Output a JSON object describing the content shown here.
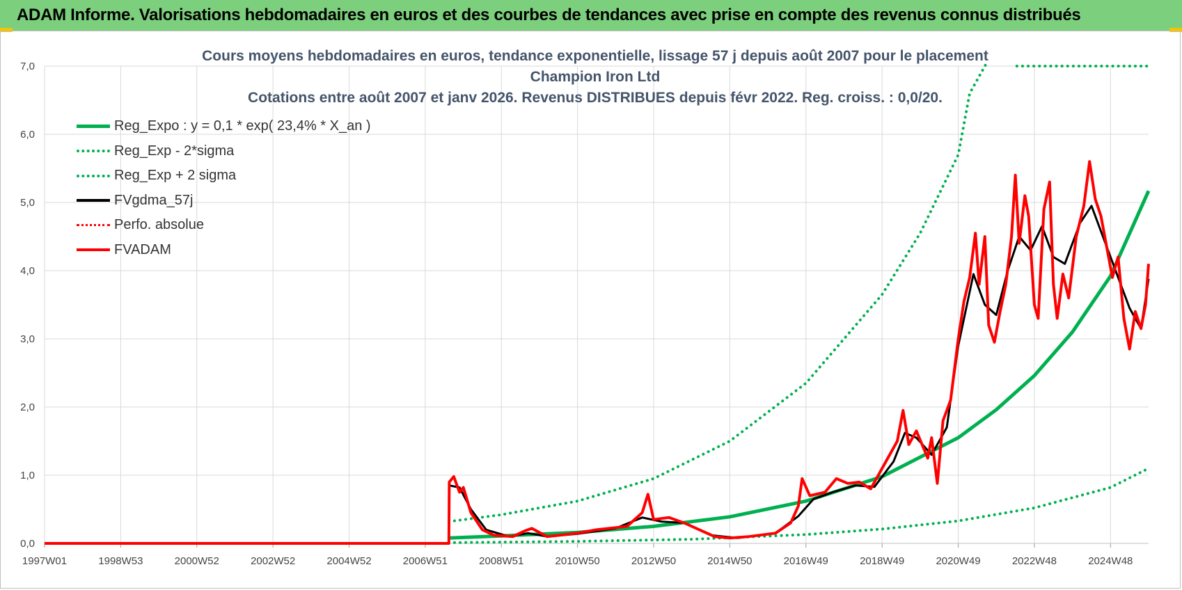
{
  "header": {
    "title": "ADAM Informe. Valorisations hebdomadaires en euros et des courbes de tendances avec prise en compte des revenus connus distribués"
  },
  "chart_data": {
    "type": "line",
    "title_line1": "Cours moyens  hebdomadaires en euros, tendance exponentielle, lissage 57 j depuis août 2007 pour le placement Champion Iron Ltd",
    "title_line2": "Cotations entre août 2007 et janv 2026.  Revenus DISTRIBUES depuis févr 2022.  Reg. croiss. : 0,0/20.",
    "ylim": [
      0,
      7
    ],
    "y_ticks": [
      "0,0",
      "1,0",
      "2,0",
      "3,0",
      "4,0",
      "5,0",
      "6,0",
      "7,0"
    ],
    "x_range": [
      1997.0,
      2026.0
    ],
    "x_ticks": [
      {
        "label": "1997W01",
        "x": 1997.0
      },
      {
        "label": "1998W53",
        "x": 1999.0
      },
      {
        "label": "2000W52",
        "x": 2001.0
      },
      {
        "label": "2002W52",
        "x": 2003.0
      },
      {
        "label": "2004W52",
        "x": 2005.0
      },
      {
        "label": "2006W51",
        "x": 2007.0
      },
      {
        "label": "2008W51",
        "x": 2009.0
      },
      {
        "label": "2010W50",
        "x": 2011.0
      },
      {
        "label": "2012W50",
        "x": 2013.0
      },
      {
        "label": "2014W50",
        "x": 2015.0
      },
      {
        "label": "2016W49",
        "x": 2017.0
      },
      {
        "label": "2018W49",
        "x": 2019.0
      },
      {
        "label": "2020W49",
        "x": 2021.0
      },
      {
        "label": "2022W48",
        "x": 2023.0
      },
      {
        "label": "2024W48",
        "x": 2025.0
      }
    ],
    "grid": true,
    "legend_position": "top-left",
    "series": [
      {
        "name": "Reg_Expo : y = 0,1 * exp( 23,4% *  X_an )",
        "color": "#00b050",
        "style": "solid",
        "width": 5,
        "points": [
          [
            2007.62,
            0.08
          ],
          [
            2009,
            0.11
          ],
          [
            2011,
            0.16
          ],
          [
            2013,
            0.25
          ],
          [
            2015,
            0.39
          ],
          [
            2017,
            0.62
          ],
          [
            2019,
            0.98
          ],
          [
            2021,
            1.55
          ],
          [
            2022,
            1.96
          ],
          [
            2023,
            2.46
          ],
          [
            2024,
            3.1
          ],
          [
            2025,
            3.92
          ],
          [
            2026,
            5.17
          ]
        ]
      },
      {
        "name": "Reg_Exp - 2*sigma",
        "color": "#00b050",
        "style": "dotted",
        "width": 4,
        "points": [
          [
            2007.62,
            0.01
          ],
          [
            2011,
            0.03
          ],
          [
            2014,
            0.06
          ],
          [
            2017,
            0.13
          ],
          [
            2019,
            0.21
          ],
          [
            2021,
            0.33
          ],
          [
            2023,
            0.52
          ],
          [
            2025,
            0.82
          ],
          [
            2026,
            1.1
          ]
        ]
      },
      {
        "name": "Reg_Exp + 2 sigma",
        "color": "#00b050",
        "style": "dotted",
        "width": 4,
        "points": [
          [
            2007.62,
            0.32
          ],
          [
            2009,
            0.42
          ],
          [
            2011,
            0.62
          ],
          [
            2013,
            0.95
          ],
          [
            2015,
            1.5
          ],
          [
            2017,
            2.35
          ],
          [
            2019,
            3.65
          ],
          [
            2020,
            4.55
          ],
          [
            2021,
            5.7
          ],
          [
            2021.3,
            6.6
          ],
          [
            2022.0,
            7.3
          ]
        ]
      },
      {
        "name": "Reg_Exp + 2 sigma (cap)",
        "color": "#00b050",
        "style": "dotted",
        "width": 4,
        "points": [
          [
            2022.54,
            7.0
          ],
          [
            2026.0,
            7.0
          ]
        ]
      },
      {
        "name": "FVgdma_57j",
        "color": "#000000",
        "style": "solid",
        "width": 3,
        "points": [
          [
            1997.0,
            0.0
          ],
          [
            2007.62,
            0.0
          ],
          [
            2007.63,
            0.85
          ],
          [
            2007.9,
            0.82
          ],
          [
            2008.2,
            0.5
          ],
          [
            2008.6,
            0.2
          ],
          [
            2009.2,
            0.1
          ],
          [
            2009.7,
            0.15
          ],
          [
            2010.2,
            0.1
          ],
          [
            2011,
            0.14
          ],
          [
            2012,
            0.22
          ],
          [
            2012.7,
            0.38
          ],
          [
            2013.2,
            0.32
          ],
          [
            2013.8,
            0.3
          ],
          [
            2014.5,
            0.12
          ],
          [
            2015.2,
            0.08
          ],
          [
            2016.2,
            0.15
          ],
          [
            2016.8,
            0.4
          ],
          [
            2017.2,
            0.65
          ],
          [
            2017.7,
            0.75
          ],
          [
            2018.3,
            0.85
          ],
          [
            2018.8,
            0.83
          ],
          [
            2019.3,
            1.2
          ],
          [
            2019.6,
            1.62
          ],
          [
            2019.9,
            1.55
          ],
          [
            2020.3,
            1.3
          ],
          [
            2020.7,
            1.7
          ],
          [
            2021.0,
            2.9
          ],
          [
            2021.4,
            3.95
          ],
          [
            2021.7,
            3.5
          ],
          [
            2022.0,
            3.35
          ],
          [
            2022.3,
            4.0
          ],
          [
            2022.6,
            4.5
          ],
          [
            2022.9,
            4.3
          ],
          [
            2023.2,
            4.65
          ],
          [
            2023.5,
            4.2
          ],
          [
            2023.8,
            4.1
          ],
          [
            2024.2,
            4.7
          ],
          [
            2024.5,
            4.95
          ],
          [
            2024.8,
            4.5
          ],
          [
            2025.1,
            4.05
          ],
          [
            2025.5,
            3.45
          ],
          [
            2025.8,
            3.15
          ],
          [
            2026.0,
            3.88
          ]
        ]
      },
      {
        "name": "Perfo. absolue",
        "color": "#ff0000",
        "style": "dotted",
        "width": 2,
        "points": [
          [
            1997.0,
            0.0
          ],
          [
            2007.62,
            0.0
          ]
        ]
      },
      {
        "name": "FVADAM",
        "color": "#ff0000",
        "style": "solid",
        "width": 4,
        "points": [
          [
            1997.0,
            0.0
          ],
          [
            2007.62,
            0.0
          ],
          [
            2007.63,
            0.9
          ],
          [
            2007.75,
            0.98
          ],
          [
            2007.9,
            0.75
          ],
          [
            2008.0,
            0.82
          ],
          [
            2008.2,
            0.45
          ],
          [
            2008.5,
            0.2
          ],
          [
            2008.8,
            0.12
          ],
          [
            2009.3,
            0.1
          ],
          [
            2009.6,
            0.18
          ],
          [
            2009.8,
            0.22
          ],
          [
            2010.2,
            0.1
          ],
          [
            2011,
            0.15
          ],
          [
            2011.5,
            0.2
          ],
          [
            2012.3,
            0.25
          ],
          [
            2012.7,
            0.45
          ],
          [
            2012.85,
            0.72
          ],
          [
            2013.0,
            0.35
          ],
          [
            2013.4,
            0.38
          ],
          [
            2013.8,
            0.3
          ],
          [
            2014.2,
            0.2
          ],
          [
            2014.6,
            0.1
          ],
          [
            2015.0,
            0.08
          ],
          [
            2015.5,
            0.1
          ],
          [
            2016.2,
            0.15
          ],
          [
            2016.6,
            0.3
          ],
          [
            2016.8,
            0.55
          ],
          [
            2016.9,
            0.95
          ],
          [
            2017.1,
            0.7
          ],
          [
            2017.5,
            0.75
          ],
          [
            2017.8,
            0.95
          ],
          [
            2018.1,
            0.88
          ],
          [
            2018.4,
            0.9
          ],
          [
            2018.7,
            0.8
          ],
          [
            2019.0,
            1.1
          ],
          [
            2019.4,
            1.5
          ],
          [
            2019.55,
            1.95
          ],
          [
            2019.7,
            1.45
          ],
          [
            2019.9,
            1.65
          ],
          [
            2020.2,
            1.25
          ],
          [
            2020.3,
            1.55
          ],
          [
            2020.45,
            0.88
          ],
          [
            2020.6,
            1.8
          ],
          [
            2020.8,
            2.1
          ],
          [
            2021.0,
            3.0
          ],
          [
            2021.15,
            3.55
          ],
          [
            2021.3,
            3.9
          ],
          [
            2021.45,
            4.55
          ],
          [
            2021.55,
            3.8
          ],
          [
            2021.7,
            4.5
          ],
          [
            2021.8,
            3.2
          ],
          [
            2021.95,
            2.95
          ],
          [
            2022.1,
            3.4
          ],
          [
            2022.25,
            3.8
          ],
          [
            2022.4,
            4.5
          ],
          [
            2022.5,
            5.4
          ],
          [
            2022.6,
            4.4
          ],
          [
            2022.75,
            5.1
          ],
          [
            2022.85,
            4.8
          ],
          [
            2023.0,
            3.5
          ],
          [
            2023.1,
            3.3
          ],
          [
            2023.25,
            4.9
          ],
          [
            2023.4,
            5.3
          ],
          [
            2023.5,
            3.8
          ],
          [
            2023.6,
            3.3
          ],
          [
            2023.75,
            3.95
          ],
          [
            2023.9,
            3.6
          ],
          [
            2024.1,
            4.5
          ],
          [
            2024.3,
            4.95
          ],
          [
            2024.45,
            5.6
          ],
          [
            2024.6,
            5.05
          ],
          [
            2024.75,
            4.8
          ],
          [
            2024.9,
            4.35
          ],
          [
            2025.05,
            3.9
          ],
          [
            2025.2,
            4.2
          ],
          [
            2025.35,
            3.3
          ],
          [
            2025.5,
            2.85
          ],
          [
            2025.65,
            3.4
          ],
          [
            2025.8,
            3.15
          ],
          [
            2025.92,
            3.5
          ],
          [
            2026.0,
            4.1
          ]
        ]
      }
    ]
  }
}
